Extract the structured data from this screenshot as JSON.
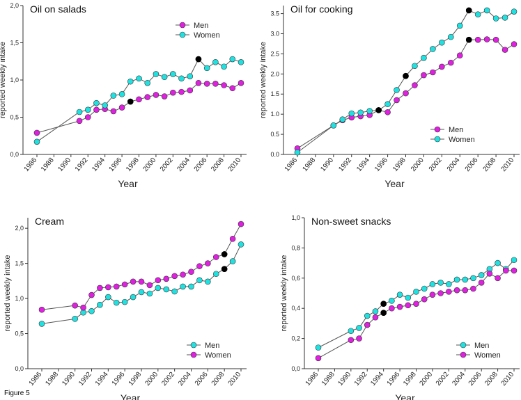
{
  "caption": "Figure 5",
  "colors": {
    "men": "#e020e0",
    "women": "#20e0e0",
    "highlight": "#000000",
    "line": "#555555"
  },
  "chart_data": [
    {
      "type": "line",
      "title": "Oil on salads",
      "xlabel": "Year",
      "ylabel": "reported weekly intake",
      "yticks": [
        "0,0",
        "0,5",
        "1,0",
        "1,5",
        "2,0"
      ],
      "xticks": [
        "1986",
        "1988",
        "1990",
        "1992",
        "1994",
        "1996",
        "1998",
        "2000",
        "2002",
        "2004",
        "2006",
        "2008",
        "2010"
      ],
      "xlim": [
        1986,
        2010
      ],
      "ylim": [
        0,
        2.0
      ],
      "legend": "top-right",
      "series": [
        {
          "name": "Men",
          "color": "men",
          "x": [
            1986,
            1991,
            1992,
            1993,
            1994,
            1995,
            1996,
            1997,
            1998,
            1999,
            2000,
            2001,
            2002,
            2003,
            2004,
            2005,
            2006,
            2007,
            2008,
            2009,
            2010
          ],
          "y": [
            0.29,
            0.45,
            0.5,
            0.6,
            0.61,
            0.58,
            0.63,
            0.71,
            0.74,
            0.77,
            0.8,
            0.78,
            0.83,
            0.84,
            0.86,
            0.96,
            0.95,
            0.95,
            0.93,
            0.89,
            0.96
          ]
        },
        {
          "name": "Women",
          "color": "women",
          "x": [
            1986,
            1991,
            1992,
            1993,
            1994,
            1995,
            1996,
            1997,
            1998,
            1999,
            2000,
            2001,
            2002,
            2003,
            2004,
            2005,
            2006,
            2007,
            2008,
            2009,
            2010
          ],
          "y": [
            0.17,
            0.57,
            0.6,
            0.69,
            0.66,
            0.79,
            0.81,
            0.98,
            1.02,
            0.96,
            1.08,
            1.04,
            1.08,
            1.02,
            1.05,
            1.28,
            1.16,
            1.24,
            1.18,
            1.28,
            1.24
          ]
        }
      ],
      "highlights": [
        {
          "x": 1997,
          "y": 0.71
        },
        {
          "x": 2005,
          "y": 1.28
        }
      ]
    },
    {
      "type": "line",
      "title": "Oil for cooking",
      "xlabel": "Year",
      "ylabel": "reported weekly intake",
      "yticks": [
        "0.0",
        "0.5",
        "1.0",
        "1.5",
        "2.0",
        "2.5",
        "3.0",
        "3.5"
      ],
      "xticks": [
        "1986",
        "1988",
        "1990",
        "1992",
        "1994",
        "1996",
        "1998",
        "2000",
        "2002",
        "2004",
        "2006",
        "2008",
        "2010"
      ],
      "xlim": [
        1986,
        2010
      ],
      "ylim": [
        0,
        3.7
      ],
      "legend": "bottom-right",
      "series": [
        {
          "name": "Men",
          "color": "men",
          "x": [
            1986,
            1990,
            1991,
            1992,
            1993,
            1994,
            1995,
            1996,
            1997,
            1998,
            1999,
            2000,
            2001,
            2002,
            2003,
            2004,
            2005,
            2006,
            2007,
            2008,
            2009,
            2010
          ],
          "y": [
            0.15,
            0.72,
            0.85,
            0.92,
            0.95,
            0.98,
            1.1,
            1.05,
            1.35,
            1.52,
            1.72,
            1.97,
            2.04,
            2.18,
            2.28,
            2.46,
            2.85,
            2.85,
            2.86,
            2.85,
            2.6,
            2.74
          ]
        },
        {
          "name": "Women",
          "color": "women",
          "x": [
            1986,
            1990,
            1991,
            1992,
            1993,
            1994,
            1995,
            1996,
            1997,
            1998,
            1999,
            2000,
            2001,
            2002,
            2003,
            2004,
            2005,
            2006,
            2007,
            2008,
            2009,
            2010
          ],
          "y": [
            0.05,
            0.72,
            0.87,
            1.02,
            1.04,
            1.08,
            1.1,
            1.25,
            1.6,
            1.95,
            2.2,
            2.4,
            2.62,
            2.78,
            2.92,
            3.2,
            3.58,
            3.48,
            3.58,
            3.38,
            3.4,
            3.55
          ]
        }
      ],
      "highlights": [
        {
          "x": 1995,
          "y": 1.1
        },
        {
          "x": 1998,
          "y": 1.95
        },
        {
          "x": 2005,
          "y": 2.85
        },
        {
          "x": 2005,
          "y": 3.58
        }
      ]
    },
    {
      "type": "line",
      "title": "Cream",
      "xlabel": "Year",
      "ylabel": "reported weekly intake",
      "yticks": [
        "0,0",
        "0,5",
        "1,0",
        "1,5",
        "2,0"
      ],
      "xticks": [
        "1986",
        "1988",
        "1990",
        "1992",
        "1994",
        "1996",
        "1998",
        "2000",
        "2002",
        "2004",
        "2006",
        "2008",
        "2010"
      ],
      "xlim": [
        1986,
        2010
      ],
      "ylim": [
        0,
        2.15
      ],
      "legend": "bottom-right",
      "series": [
        {
          "name": "Men",
          "color": "women",
          "x": [
            1986,
            1990,
            1991,
            1992,
            1993,
            1994,
            1995,
            1996,
            1997,
            1998,
            1999,
            2000,
            2001,
            2002,
            2003,
            2004,
            2005,
            2006,
            2007,
            2008,
            2009,
            2010
          ],
          "y": [
            0.64,
            0.71,
            0.8,
            0.82,
            0.91,
            1.02,
            0.94,
            0.95,
            1.02,
            1.09,
            1.07,
            1.15,
            1.13,
            1.1,
            1.17,
            1.17,
            1.26,
            1.24,
            1.35,
            1.42,
            1.53,
            1.77
          ]
        },
        {
          "name": "Women",
          "color": "men",
          "x": [
            1986,
            1990,
            1991,
            1992,
            1993,
            1994,
            1995,
            1996,
            1997,
            1998,
            1999,
            2000,
            2001,
            2002,
            2003,
            2004,
            2005,
            2006,
            2007,
            2008,
            2009,
            2010
          ],
          "y": [
            0.84,
            0.9,
            0.87,
            1.05,
            1.15,
            1.16,
            1.17,
            1.2,
            1.24,
            1.24,
            1.19,
            1.26,
            1.28,
            1.32,
            1.34,
            1.38,
            1.46,
            1.5,
            1.59,
            1.63,
            1.85,
            2.06
          ]
        }
      ],
      "highlights": [
        {
          "x": 2008,
          "y": 1.42
        },
        {
          "x": 2008,
          "y": 1.63
        }
      ]
    },
    {
      "type": "line",
      "title": "Non-sweet snacks",
      "xlabel": "Year",
      "ylabel": "reported weekly intake",
      "yticks": [
        "0,0",
        "0,2",
        "0,4",
        "0,6",
        "0,8",
        "1,0"
      ],
      "xticks": [
        "1986",
        "1988",
        "1990",
        "1992",
        "1994",
        "1996",
        "1998",
        "2000",
        "2002",
        "2004",
        "2006",
        "2008",
        "2010"
      ],
      "xlim": [
        1986,
        2010
      ],
      "ylim": [
        0,
        1.0
      ],
      "legend": "bottom-right",
      "series": [
        {
          "name": "Men",
          "color": "women",
          "x": [
            1986,
            1990,
            1991,
            1992,
            1993,
            1994,
            1995,
            1996,
            1997,
            1998,
            1999,
            2000,
            2001,
            2002,
            2003,
            2004,
            2005,
            2006,
            2007,
            2008,
            2009,
            2010
          ],
          "y": [
            0.14,
            0.25,
            0.27,
            0.35,
            0.38,
            0.43,
            0.45,
            0.49,
            0.47,
            0.51,
            0.53,
            0.56,
            0.57,
            0.56,
            0.59,
            0.59,
            0.6,
            0.62,
            0.66,
            0.7,
            0.66,
            0.72
          ]
        },
        {
          "name": "Women",
          "color": "men",
          "x": [
            1986,
            1990,
            1991,
            1992,
            1993,
            1994,
            1995,
            1996,
            1997,
            1998,
            1999,
            2000,
            2001,
            2002,
            2003,
            2004,
            2005,
            2006,
            2007,
            2008,
            2009,
            2010
          ],
          "y": [
            0.07,
            0.19,
            0.2,
            0.29,
            0.34,
            0.37,
            0.4,
            0.41,
            0.42,
            0.43,
            0.46,
            0.49,
            0.5,
            0.51,
            0.52,
            0.52,
            0.53,
            0.57,
            0.63,
            0.6,
            0.65,
            0.65
          ]
        }
      ],
      "highlights": [
        {
          "x": 1994,
          "y": 0.43
        },
        {
          "x": 1994,
          "y": 0.37
        }
      ]
    }
  ]
}
